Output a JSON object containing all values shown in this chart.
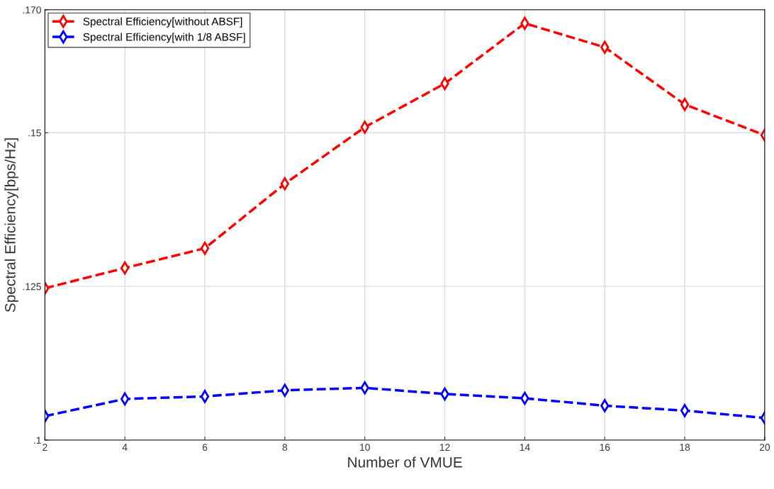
{
  "chart_data": {
    "type": "line",
    "xlabel": "Number of VMUE",
    "ylabel": "Spectral Efficiency[bps/Hz]",
    "x": [
      2,
      4,
      6,
      8,
      10,
      12,
      14,
      16,
      18,
      20
    ],
    "series": [
      {
        "name": "Spectral Efficiency[without ABSF]",
        "color": "#ff0000",
        "values": [
          0.1247,
          0.128,
          0.1312,
          0.1417,
          0.1509,
          0.158,
          0.1678,
          0.1639,
          0.1546,
          0.1496
        ]
      },
      {
        "name": "Spectral Efficiency[with 1/8 ABSF]",
        "color": "#0000ff",
        "values": [
          0.1039,
          0.1067,
          0.1071,
          0.1081,
          0.1085,
          0.1075,
          0.1068,
          0.1056,
          0.1048,
          0.1036
        ]
      }
    ],
    "xlim": [
      2,
      20
    ],
    "xticks": [
      2,
      4,
      6,
      8,
      10,
      12,
      14,
      16,
      18,
      20
    ],
    "ylim": [
      0.1,
      0.17
    ],
    "yticks": [
      {
        "value": 0.1,
        "label": ".1"
      },
      {
        "value": 0.125,
        "label": ".125"
      },
      {
        "value": 0.15,
        "label": ".15"
      },
      {
        "value": 0.17,
        "label": ".170"
      }
    ],
    "grid": true,
    "legend": "top left",
    "marker": "diamond",
    "line_style": "dashed"
  }
}
